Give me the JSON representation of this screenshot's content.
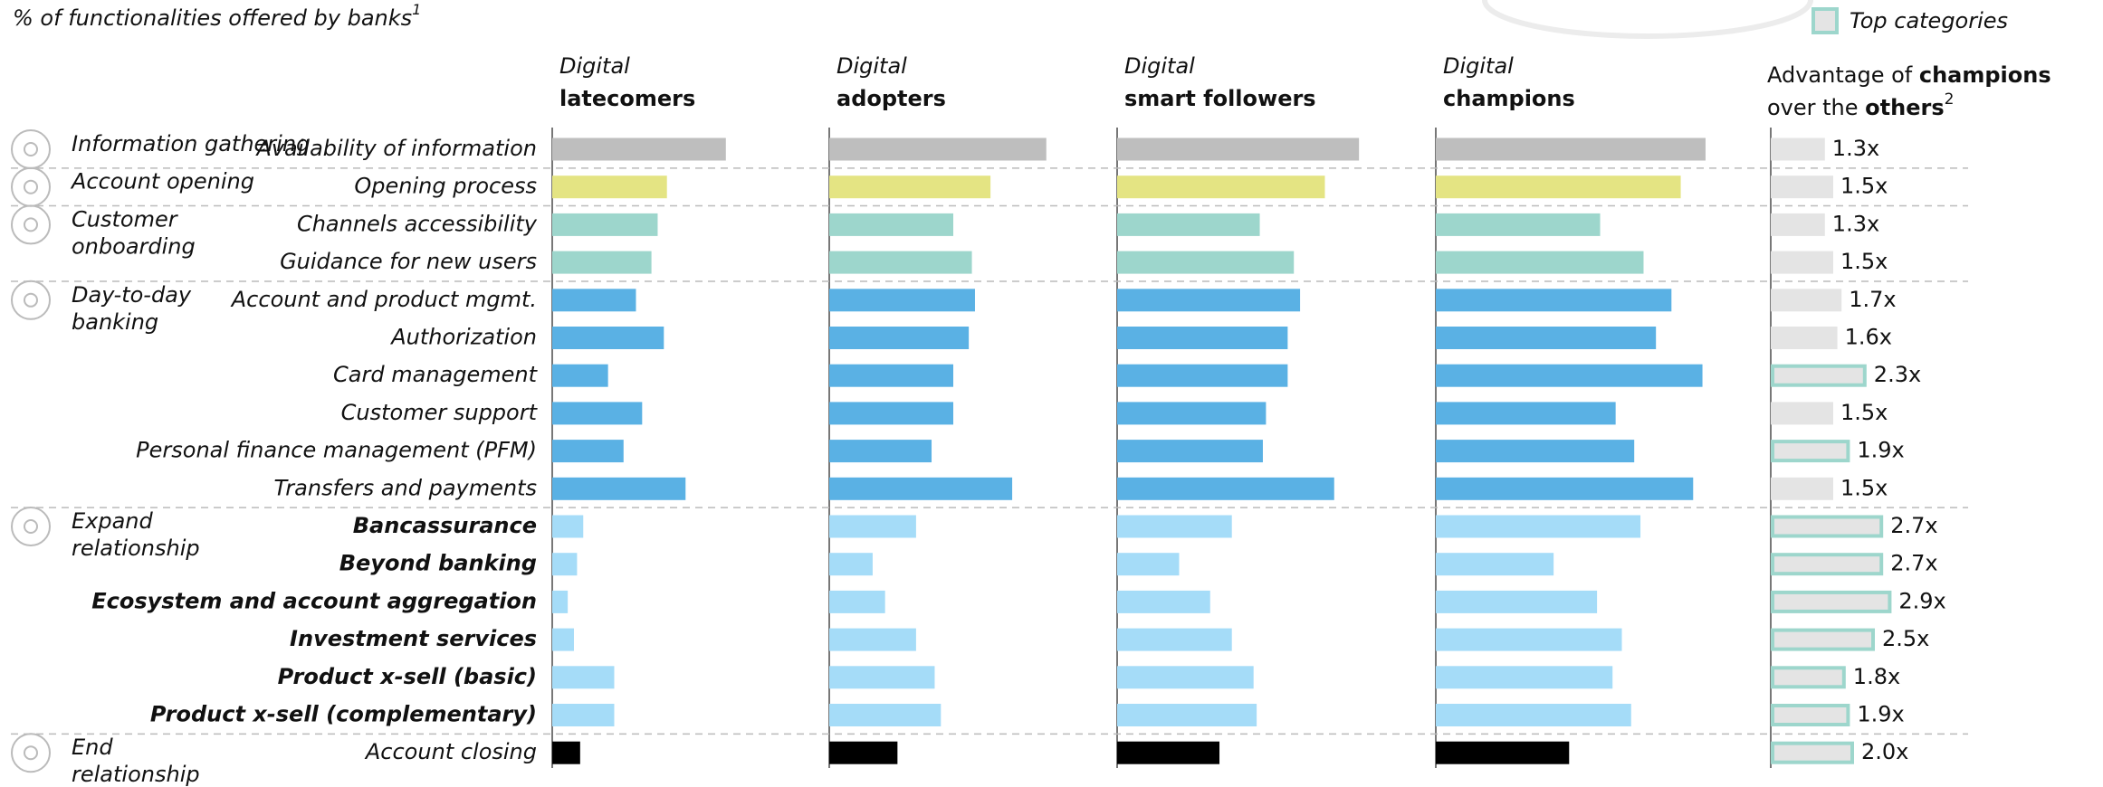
{
  "chart_data": {
    "type": "bar",
    "title": "% of functionalities offered by banks",
    "title_sup": "1",
    "xlim": [
      0,
      100
    ],
    "groups": [
      {
        "label_lines": [
          "Information gathering"
        ],
        "color": "#bebebe",
        "bold": false,
        "categories": [
          "Availability of information"
        ]
      },
      {
        "label_lines": [
          "Account opening"
        ],
        "color": "#e4e483",
        "bold": false,
        "categories": [
          "Opening process"
        ]
      },
      {
        "label_lines": [
          "Customer",
          "onboarding"
        ],
        "color": "#9dd6cc",
        "bold": false,
        "categories": [
          "Channels accessibility",
          "Guidance for new users"
        ]
      },
      {
        "label_lines": [
          "Day-to-day",
          "banking"
        ],
        "color": "#5ab1e4",
        "bold": false,
        "categories": [
          "Account and product mgmt.",
          "Authorization",
          "Card management",
          "Customer support",
          "Personal finance management (PFM)",
          "Transfers and payments"
        ]
      },
      {
        "label_lines": [
          "Expand",
          "relationship"
        ],
        "color": "#a5dcf8",
        "bold": true,
        "categories": [
          "Bancassurance",
          "Beyond banking",
          "Ecosystem and account aggregation",
          "Investment services",
          "Product x-sell (basic)",
          "Product x-sell (complementary)"
        ]
      },
      {
        "label_lines": [
          "End",
          "relationship"
        ],
        "color": "#000000",
        "bold": false,
        "categories": [
          "Account closing"
        ]
      }
    ],
    "series": [
      {
        "label_lines": [
          "Digital",
          "latecomers"
        ],
        "values": [
          56,
          37,
          34,
          32,
          27,
          36,
          18,
          29,
          23,
          43,
          10,
          8,
          5,
          7,
          20,
          20,
          9
        ]
      },
      {
        "label_lines": [
          "Digital",
          "adopters"
        ],
        "values": [
          70,
          52,
          40,
          46,
          47,
          45,
          40,
          40,
          33,
          59,
          28,
          14,
          18,
          28,
          34,
          36,
          22
        ]
      },
      {
        "label_lines": [
          "Digital",
          "smart followers"
        ],
        "values": [
          78,
          67,
          46,
          57,
          59,
          55,
          55,
          48,
          47,
          70,
          37,
          20,
          30,
          37,
          44,
          45,
          33
        ]
      },
      {
        "label_lines": [
          "Digital",
          "champions"
        ],
        "values": [
          87,
          79,
          53,
          67,
          76,
          71,
          86,
          58,
          64,
          83,
          66,
          38,
          52,
          60,
          57,
          63,
          43
        ]
      }
    ],
    "advantage": {
      "title_lines": [
        [
          {
            "text": "Advantage of "
          },
          {
            "text": "champions",
            "bold": true
          }
        ],
        [
          {
            "text": "over the "
          },
          {
            "text": "others",
            "bold": true
          },
          {
            "text": "2",
            "sup": true
          }
        ]
      ],
      "xlim": [
        0,
        3
      ],
      "color": "#e4e4e4",
      "highlight_color": "#9dd6cc",
      "values": [
        1.3,
        1.5,
        1.3,
        1.5,
        1.7,
        1.6,
        2.3,
        1.5,
        1.9,
        1.5,
        2.7,
        2.7,
        2.9,
        2.5,
        1.8,
        1.9,
        2.0
      ],
      "value_labels": [
        "1.3x",
        "1.5x",
        "1.3x",
        "1.5x",
        "1.7x",
        "1.6x",
        "2.3x",
        "1.5x",
        "1.9x",
        "1.5x",
        "2.7x",
        "2.7x",
        "2.9x",
        "2.5x",
        "1.8x",
        "1.9x",
        "2.0x"
      ],
      "top": [
        false,
        false,
        false,
        false,
        false,
        false,
        true,
        false,
        true,
        false,
        true,
        true,
        true,
        true,
        true,
        true,
        true
      ]
    },
    "legend": {
      "label": "Top categories",
      "corner": "top-right"
    }
  }
}
